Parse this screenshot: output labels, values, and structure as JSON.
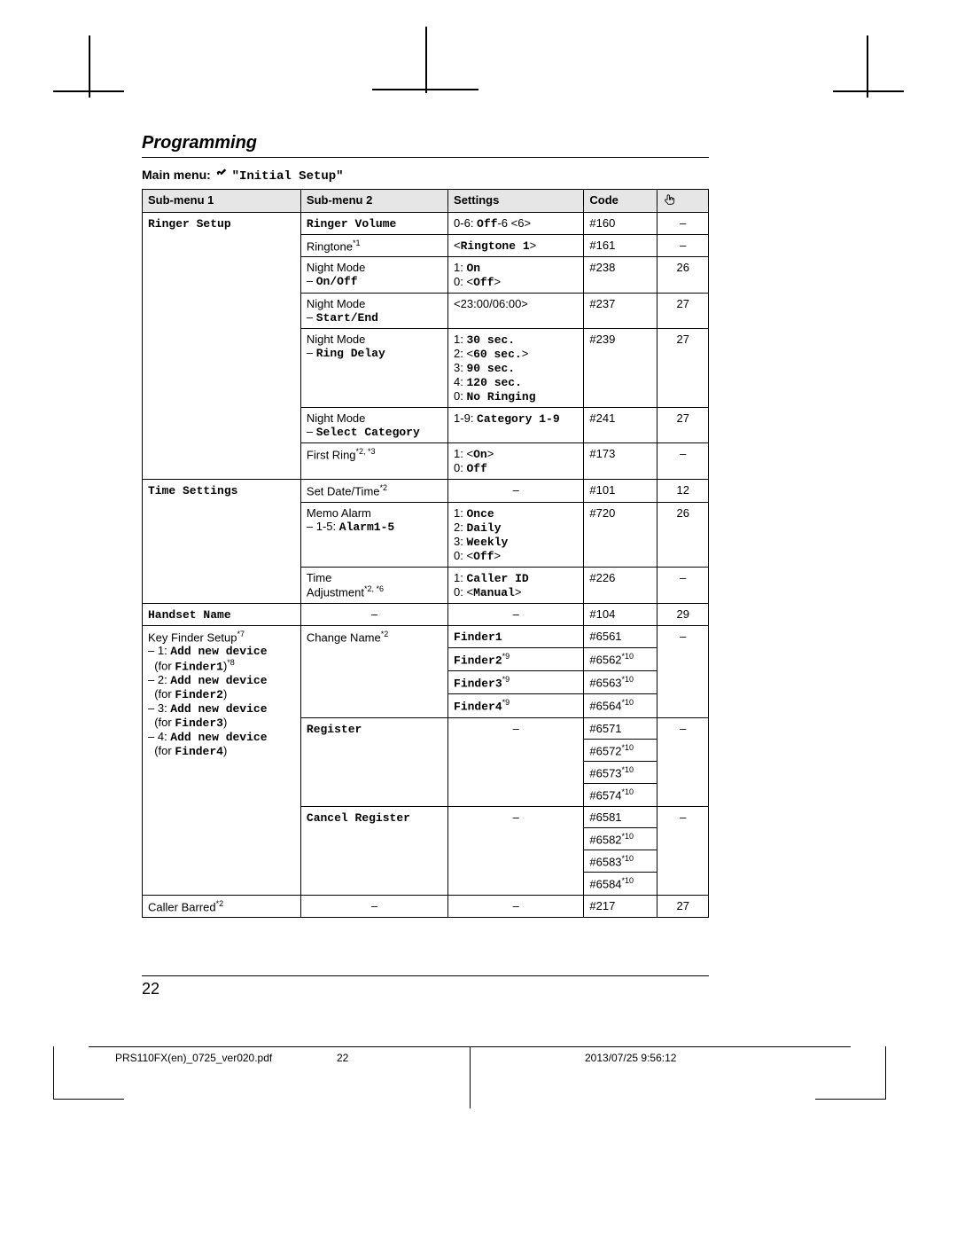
{
  "sectionTitle": "Programming",
  "mainMenu": {
    "prefix": "Main menu:",
    "label": "\"Initial Setup\""
  },
  "headers": [
    "Sub-menu 1",
    "Sub-menu 2",
    "Settings",
    "Code",
    "☞"
  ],
  "rows": [
    {
      "sm1": "Ringer Setup",
      "sm1_rowspan": 6,
      "sm2": "Ringer Volume",
      "settings": "0-6: <span class='mono'>Off</span>-6 &lt;6&gt;",
      "code": "#160",
      "ref": "–"
    },
    {
      "sm2": "Ringtone<sup>*1</sup>",
      "settings": "&lt;<span class='mono'>Ringtone 1</span>&gt;",
      "code": "#161",
      "ref": "–"
    },
    {
      "sm2": "Night Mode<br>– <span class='mono'>On/Off</span>",
      "settings": "1: <span class='mono'>On</span><br>0: &lt;<span class='mono'>Off</span>&gt;",
      "code": "#238",
      "ref": "26"
    },
    {
      "sm2": "Night Mode<br>– <span class='mono'>Start/End</span>",
      "settings": "&lt;23:00/06:00&gt;",
      "code": "#237",
      "ref": "27"
    },
    {
      "sm2": "Night Mode<br>– <span class='mono'>Ring Delay</span>",
      "settings": "1: <span class='mono'>30 sec.</span><br>2: &lt;<span class='mono'>60 sec.</span>&gt;<br>3: <span class='mono'>90 sec.</span><br>4: <span class='mono'>120 sec.</span><br>0: <span class='mono'>No Ringing</span>",
      "code": "#239",
      "ref": "27"
    },
    {
      "sm2": "Night Mode<br>– <span class='mono'>Select Category</span>",
      "settings": "1-9: <span class='mono'>Category 1-9</span>",
      "code": "#241",
      "ref": "27"
    },
    {
      "sm1": "",
      "sm2": "First Ring<sup>*2, *3</sup>",
      "settings": "1: &lt;<span class='mono'>On</span>&gt;<br>0: <span class='mono'>Off</span>",
      "code": "#173",
      "ref": "–",
      "sm1_merge_above": true
    },
    {
      "sm1": "Time Settings",
      "sm1_rowspan": 3,
      "sm2": "Set Date/Time<sup>*2</sup>",
      "settings": "–",
      "settings_center": true,
      "code": "#101",
      "ref": "12"
    },
    {
      "sm2": "Memo Alarm<br>– 1-5: <span class='mono'>Alarm1-5</span>",
      "settings": "1: <span class='mono'>Once</span><br>2: <span class='mono'>Daily</span><br>3: <span class='mono'>Weekly</span><br>0: &lt;<span class='mono'>Off</span>&gt;",
      "code": "#720",
      "ref": "26"
    },
    {
      "sm2": "Time<br>Adjustment<sup>*2, *6</sup>",
      "settings": "1: <span class='mono'>Caller ID</span><br>0: &lt;<span class='mono'>Manual</span>&gt;",
      "code": "#226",
      "ref": "–"
    },
    {
      "sm1": "Handset Name",
      "sm2": "–",
      "sm2_center": true,
      "settings": "–",
      "settings_center": true,
      "code": "#104",
      "ref": "29"
    },
    {
      "sm1": "Key Finder Setup<sup>*7</sup><br>– 1: <span class='mono'>Add new device</span><br>&nbsp;&nbsp;(for <span class='mono'>Finder1</span>)<sup>*8</sup><br>– 2: <span class='mono'>Add new device</span><br>&nbsp;&nbsp;(for <span class='mono'>Finder2</span>)<br>– 3: <span class='mono'>Add new device</span><br>&nbsp;&nbsp;(for <span class='mono'>Finder3</span>)<br>– 4: <span class='mono'>Add new device</span><br>&nbsp;&nbsp;(for <span class='mono'>Finder4</span>)",
      "sm1_rowspan": 12,
      "sm2": "Change Name<sup>*2</sup>",
      "sm2_rowspan": 4,
      "settings": "<span class='mono'>Finder1</span>",
      "code": "#6561",
      "ref": "–",
      "ref_rowspan": 4
    },
    {
      "settings": "<span class='mono'>Finder2</span><sup>*9</sup>",
      "code": "#6562<sup>*10</sup>"
    },
    {
      "settings": "<span class='mono'>Finder3</span><sup>*9</sup>",
      "code": "#6563<sup>*10</sup>"
    },
    {
      "settings": "<span class='mono'>Finder4</span><sup>*9</sup>",
      "code": "#6564<sup>*10</sup>"
    },
    {
      "sm2": "Register",
      "sm2_rowspan": 4,
      "settings": "–",
      "settings_center": true,
      "settings_rowspan": 4,
      "code": "#6571",
      "ref": "–",
      "ref_rowspan": 4
    },
    {
      "code": "#6572<sup>*10</sup>"
    },
    {
      "code": "#6573<sup>*10</sup>"
    },
    {
      "code": "#6574<sup>*10</sup>"
    },
    {
      "sm2": "Cancel Register",
      "sm2_rowspan": 4,
      "settings": "–",
      "settings_center": true,
      "settings_rowspan": 4,
      "code": "#6581",
      "ref": "–",
      "ref_rowspan": 4
    },
    {
      "code": "#6582<sup>*10</sup>"
    },
    {
      "code": "#6583<sup>*10</sup>"
    },
    {
      "code": "#6584<sup>*10</sup>"
    },
    {
      "sm1": "Caller Barred<sup>*2</sup>",
      "sm2": "–",
      "sm2_center": true,
      "settings": "–",
      "settings_center": true,
      "code": "#217",
      "ref": "27"
    }
  ],
  "pageNumber": "22",
  "footer": {
    "file": "PRS110FX(en)_0725_ver020.pdf",
    "page": "22",
    "date": "2013/07/25   9:56:12"
  },
  "colors": {
    "headerBg": "#e6e6e6",
    "border": "#000000",
    "bg": "#ffffff"
  },
  "colWidths": [
    "28%",
    "26%",
    "24%",
    "13%",
    "9%"
  ]
}
